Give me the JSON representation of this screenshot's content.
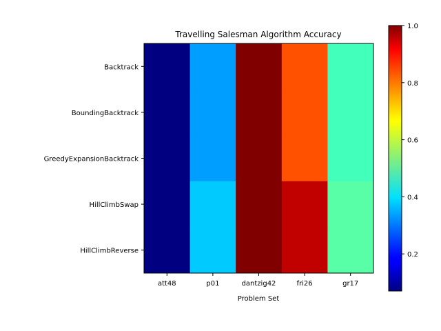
{
  "chart_data": {
    "type": "heatmap",
    "title": "Travelling Salesman Algorithm Accuracy",
    "xlabel": "Problem Set",
    "ylabel": "",
    "x_categories": [
      "att48",
      "p01",
      "dantzig42",
      "fri26",
      "gr17"
    ],
    "y_categories": [
      "Backtrack",
      "BoundingBacktrack",
      "GreedyExpansionBacktrack",
      "HillClimbSwap",
      "HillClimbReverse"
    ],
    "values": [
      [
        0.07,
        0.33,
        1.0,
        0.81,
        0.48
      ],
      [
        0.07,
        0.33,
        1.0,
        0.81,
        0.48
      ],
      [
        0.07,
        0.33,
        1.0,
        0.81,
        0.48
      ],
      [
        0.07,
        0.37,
        1.0,
        0.94,
        0.5
      ],
      [
        0.07,
        0.37,
        1.0,
        0.94,
        0.5
      ]
    ],
    "colormap": "jet",
    "colorbar": {
      "range": [
        0.07,
        1.0
      ],
      "ticks": [
        0.2,
        0.4,
        0.6,
        0.8,
        1.0
      ],
      "tick_labels": [
        "0.2",
        "0.4",
        "0.6",
        "0.8",
        "1.0"
      ]
    }
  }
}
